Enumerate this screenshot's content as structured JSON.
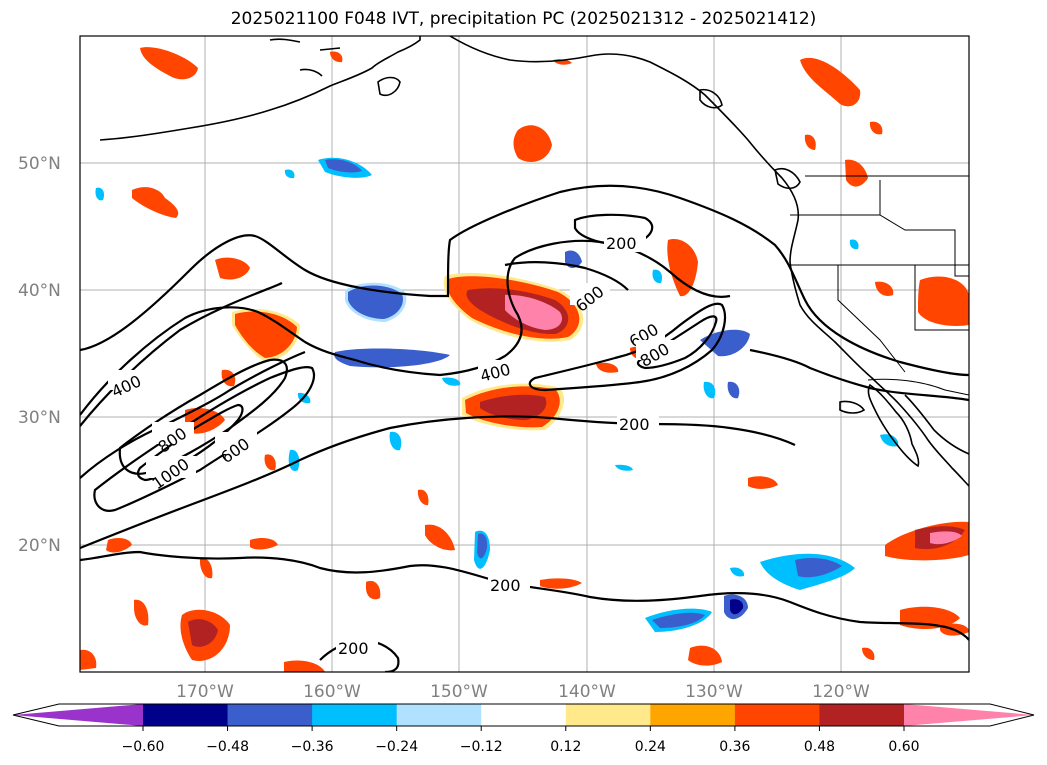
{
  "title": "2025021100 F048 IVT, precipitation PC (2025021312 - 2025021412)",
  "map": {
    "lat_labels": [
      "50°N",
      "40°N",
      "30°N",
      "20°N"
    ],
    "lon_labels": [
      "170°W",
      "160°W",
      "150°W",
      "140°W",
      "130°W",
      "120°W"
    ],
    "gridlines": true,
    "contour_labels": [
      "200",
      "600",
      "400",
      "600",
      "800",
      "400",
      "800",
      "600",
      "1000",
      "200",
      "200",
      "200"
    ],
    "ivt_contour_levels": [
      200,
      400,
      600,
      800,
      1000
    ]
  },
  "colorbar": {
    "ticks": [
      "−0.60",
      "−0.48",
      "−0.36",
      "−0.24",
      "−0.12",
      "0.12",
      "0.24",
      "0.36",
      "0.48",
      "0.60"
    ],
    "colors": [
      "#9a33cc",
      "#00008b",
      "#3a5fcd",
      "#00bfff",
      "#b0e2ff",
      "#ffffff",
      "#ffe98a",
      "#ffa500",
      "#ff4500",
      "#b22222",
      "#ff82ab"
    ],
    "extend": "both"
  },
  "colors": {
    "ocean": "#ffffff",
    "grid": "#b0b0b0",
    "coast": "#000000",
    "contour": "#000000"
  }
}
